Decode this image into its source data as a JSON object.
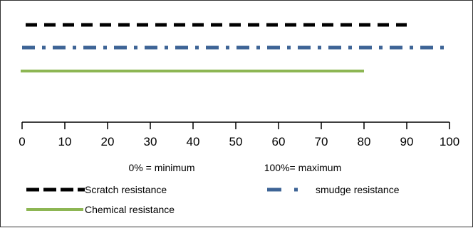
{
  "chart_data": {
    "type": "bar",
    "title": "",
    "xlabel": "",
    "ylabel": "",
    "xlim": [
      0,
      100
    ],
    "x_ticks": [
      "0",
      "10",
      "20",
      "30",
      "40",
      "50",
      "60",
      "70",
      "80",
      "90",
      "100"
    ],
    "series": [
      {
        "name": "Scratch resistance",
        "value": 90,
        "color": "#000000",
        "line_style": "dashed"
      },
      {
        "name": "smudge resistance",
        "value": 100,
        "color": "#3e6496",
        "line_style": "dash-dot"
      },
      {
        "name": "Chemical resistance",
        "value": 80,
        "color": "#8db653",
        "line_style": "solid"
      }
    ],
    "annotations": {
      "minimum": "0% = minimum",
      "maximum": "100%= maximum"
    },
    "legend_position": "bottom",
    "grid": false
  }
}
